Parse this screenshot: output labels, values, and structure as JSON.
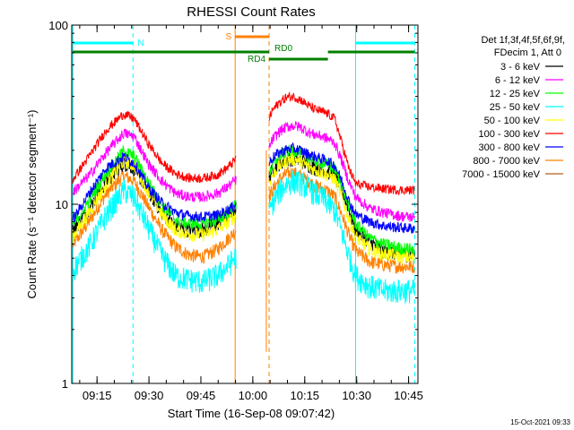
{
  "chart_data": {
    "type": "line",
    "title": "RHESSI Count Rates",
    "xlabel": "Start Time (16-Sep-08 09:07:42)",
    "ylabel": "Count Rate (s⁻¹ detector segment⁻¹)",
    "yscale": "log",
    "ylim": [
      1,
      100
    ],
    "xlim_minutes_after_start": [
      0,
      100
    ],
    "x_tick_labels": [
      "09:15",
      "09:30",
      "09:45",
      "10:00",
      "10:15",
      "10:30",
      "10:45"
    ],
    "x_tick_minutes": [
      7.3,
      22.3,
      37.3,
      52.3,
      67.3,
      82.3,
      97.3
    ],
    "y_tick_labels": [
      "1",
      "10",
      "100"
    ],
    "y_tick_values": [
      1,
      10,
      100
    ],
    "legend_header": [
      "Det 1f,3f,4f,5f,6f,9f,",
      "FDecim 1, Att 0"
    ],
    "legend_position": "right",
    "data_gap_minutes": [
      47.5,
      57.0
    ],
    "gap_marker_minutes": 56.2,
    "sample_minutes": [
      0,
      5,
      10,
      15,
      18,
      22,
      26,
      30,
      34,
      38,
      42,
      45,
      47,
      57,
      58,
      60,
      62,
      64,
      66,
      68,
      70,
      72,
      74,
      76,
      78,
      80,
      82,
      86,
      90,
      95,
      100
    ],
    "series": [
      {
        "name": "3 - 6 keV",
        "color": "#000000",
        "values": [
          7.0,
          9.5,
          13.5,
          17.0,
          16.0,
          12.0,
          9.0,
          7.5,
          7.2,
          7.2,
          7.8,
          8.6,
          9.2,
          14.0,
          15.5,
          17.0,
          17.8,
          18.0,
          17.6,
          16.8,
          16.0,
          15.6,
          15.2,
          14.4,
          12.0,
          9.5,
          7.2,
          6.2,
          5.5,
          5.3,
          5.2
        ]
      },
      {
        "name": "6 - 12 keV",
        "color": "#ff00ff",
        "values": [
          11.5,
          14.5,
          19.5,
          25.0,
          24.0,
          17.0,
          13.5,
          11.5,
          11.0,
          11.0,
          11.5,
          12.5,
          13.5,
          20.5,
          23.0,
          25.5,
          27.0,
          27.5,
          27.0,
          25.5,
          24.5,
          24.0,
          23.2,
          22.0,
          17.5,
          13.5,
          11.0,
          9.5,
          9.0,
          8.6,
          8.4
        ]
      },
      {
        "name": "12 - 25 keV",
        "color": "#00ff00",
        "values": [
          7.5,
          10.5,
          15.0,
          20.0,
          18.5,
          13.5,
          10.0,
          8.2,
          7.8,
          7.8,
          8.2,
          9.0,
          9.8,
          15.0,
          16.5,
          18.5,
          19.8,
          20.0,
          19.5,
          18.5,
          17.6,
          17.2,
          16.6,
          15.8,
          12.8,
          9.8,
          7.8,
          6.5,
          6.0,
          5.7,
          5.6
        ]
      },
      {
        "name": "25 - 50 keV",
        "color": "#00ffff",
        "values": [
          4.2,
          5.8,
          8.8,
          12.0,
          11.0,
          7.5,
          5.2,
          4.0,
          3.8,
          3.7,
          4.0,
          4.5,
          5.0,
          8.8,
          10.2,
          11.8,
          13.0,
          13.5,
          13.2,
          12.5,
          11.6,
          11.0,
          10.2,
          9.2,
          7.0,
          5.2,
          4.0,
          3.5,
          3.3,
          3.3,
          3.3
        ]
      },
      {
        "name": "50 - 100 keV",
        "color": "#ffff00",
        "values": [
          6.5,
          9.0,
          13.0,
          17.5,
          16.5,
          12.0,
          8.8,
          7.2,
          6.8,
          6.8,
          7.2,
          8.0,
          8.6,
          13.0,
          14.5,
          16.5,
          17.6,
          18.0,
          17.4,
          16.4,
          15.6,
          15.2,
          14.6,
          13.8,
          11.0,
          8.4,
          6.6,
          5.6,
          5.3,
          5.1,
          5.0
        ]
      },
      {
        "name": "100 - 300 keV",
        "color": "#ff0000",
        "values": [
          13.5,
          18.5,
          26.0,
          32.0,
          30.0,
          22.0,
          17.0,
          14.8,
          14.0,
          14.0,
          14.6,
          16.0,
          17.5,
          30.0,
          33.5,
          37.0,
          39.5,
          40.0,
          38.5,
          36.0,
          34.0,
          33.0,
          32.0,
          30.0,
          22.0,
          16.0,
          13.0,
          12.5,
          12.2,
          12.0,
          12.0
        ]
      },
      {
        "name": "300 - 800 keV",
        "color": "#0000ff",
        "values": [
          8.0,
          11.5,
          16.0,
          18.5,
          17.0,
          12.5,
          10.2,
          9.0,
          8.6,
          8.5,
          8.7,
          9.3,
          9.8,
          17.0,
          18.2,
          19.5,
          20.2,
          20.5,
          20.0,
          19.2,
          18.5,
          18.0,
          17.4,
          16.5,
          13.5,
          10.5,
          8.8,
          8.0,
          7.6,
          7.4,
          7.3
        ]
      },
      {
        "name": "800 - 7000 keV",
        "color": "#ff8000",
        "values": [
          5.8,
          8.0,
          11.5,
          14.5,
          13.5,
          9.8,
          7.2,
          5.8,
          5.2,
          5.1,
          5.6,
          6.4,
          7.0,
          11.0,
          12.0,
          13.8,
          14.8,
          15.0,
          14.5,
          13.6,
          12.8,
          12.4,
          11.8,
          11.0,
          8.8,
          6.8,
          5.5,
          4.8,
          4.6,
          4.5,
          4.5
        ]
      },
      {
        "name": "7000 - 15000 keV",
        "color": "#b06020",
        "values": [
          1.02,
          1.02,
          1.02,
          1.02,
          1.02,
          1.02,
          1.02,
          1.02,
          1.02,
          1.02,
          1.02,
          1.02,
          1.02,
          1.02,
          1.02,
          1.02,
          1.02,
          1.02,
          1.02,
          1.02,
          1.02,
          1.02,
          1.02,
          1.02,
          1.02,
          1.02,
          1.02,
          1.02,
          1.02,
          1.02,
          1.02
        ]
      }
    ],
    "vertical_markers": [
      {
        "minute": 0.3,
        "color": "#00ffff",
        "style": "solid"
      },
      {
        "minute": 17.7,
        "color": "#00ffff",
        "style": "dashed"
      },
      {
        "minute": 47.2,
        "color": "#ff8000",
        "style": "solid"
      },
      {
        "minute": 57.0,
        "color": "#ff8000",
        "style": "dashed"
      },
      {
        "minute": 82.0,
        "color": "#00ffff",
        "style": "solid"
      },
      {
        "minute": 99.1,
        "color": "#00ffff",
        "style": "dashed"
      }
    ],
    "flag_bars": [
      {
        "label": "N",
        "color": "#00ffff",
        "segments": [
          [
            0.3,
            17.7
          ],
          [
            82.0,
            99.1
          ]
        ],
        "level": "high"
      },
      {
        "label": "S",
        "color": "#ff8000",
        "segments": [
          [
            47.2,
            57.0
          ]
        ],
        "level": "top"
      },
      {
        "label": "RD0",
        "color": "#008000",
        "segments": [
          [
            0.3,
            57.0
          ],
          [
            74.0,
            99.1
          ]
        ],
        "level": "mid"
      },
      {
        "label": "RD4",
        "color": "#008000",
        "segments": [
          [
            57.0,
            74.0
          ]
        ],
        "level": "low"
      }
    ]
  },
  "footer_timestamp": "15-Oct-2021 09:33"
}
